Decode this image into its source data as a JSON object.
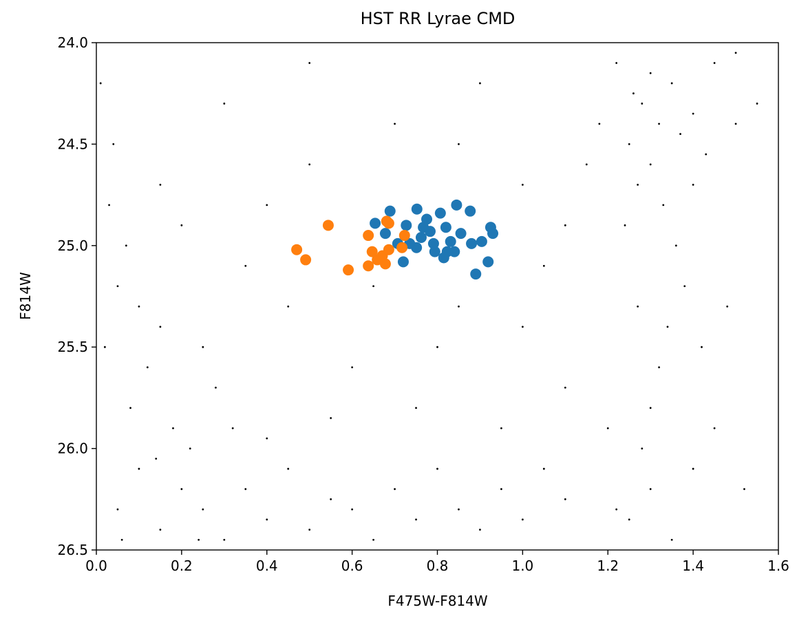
{
  "chart_data": {
    "type": "scatter",
    "title": "HST RR Lyrae CMD",
    "x_label": "F475W-F814W",
    "y_label": "F814W",
    "xlim": [
      0,
      1.6
    ],
    "ylim": [
      24,
      26.5
    ],
    "y_inverted": true,
    "xticks": [
      {
        "value": 0,
        "label": "0.0"
      },
      0.2,
      0.4,
      0.6,
      0.8,
      {
        "value": 1,
        "label": "1.0"
      },
      1.2,
      1.4,
      1.6
    ],
    "yticks": [
      {
        "value": 24,
        "label": "24.0"
      },
      24.5,
      {
        "value": 25,
        "label": "25.0"
      },
      25.5,
      {
        "value": 26,
        "label": "26.0"
      },
      26.5
    ],
    "series": [
      {
        "color": "#000000",
        "marker_size": 1.4,
        "x": [
          1.28,
          1.32,
          1.25,
          1.35,
          1.3,
          1.22,
          1.4,
          1.45,
          1.5,
          1.27,
          1.33,
          1.36,
          1.38,
          1.34,
          1.32,
          1.3,
          1.28,
          1.3,
          1.25,
          1.4,
          1.45,
          1.42,
          1.2,
          1.22,
          1.5,
          1.55,
          1.18,
          1.15,
          1.4,
          1.48,
          1.52,
          1.35,
          1.27,
          1.24,
          1.43,
          1.3,
          1.26,
          1.37,
          0.05,
          0.1,
          0.15,
          0.2,
          0.25,
          0.3,
          0.02,
          0.05,
          0.08,
          0.12,
          0.18,
          0.22,
          0.35,
          0.4,
          0.45,
          0.5,
          0.55,
          0.6,
          0.65,
          0.7,
          0.75,
          0.8,
          0.85,
          0.9,
          0.95,
          1.0,
          1.05,
          1.1,
          0.03,
          0.07,
          0.1,
          0.15,
          0.28,
          0.32,
          0.4,
          0.01,
          0.04,
          0.06,
          0.14,
          0.24,
          0.3,
          0.5,
          0.7,
          0.9,
          1.0,
          0.45,
          0.6,
          0.8,
          1.0,
          0.55,
          0.75,
          0.95,
          1.1,
          0.2,
          0.35,
          0.85,
          0.65,
          1.05,
          0.15,
          0.25,
          0.5,
          0.85,
          0.4,
          1.1
        ],
        "y": [
          24.3,
          24.4,
          24.5,
          24.2,
          24.6,
          24.1,
          24.35,
          24.1,
          24.05,
          24.7,
          24.8,
          25.0,
          25.2,
          25.4,
          25.6,
          25.8,
          26.0,
          26.2,
          26.35,
          26.1,
          25.9,
          25.5,
          25.9,
          26.3,
          24.4,
          24.3,
          24.4,
          24.6,
          24.7,
          25.3,
          26.2,
          26.45,
          25.3,
          24.9,
          24.55,
          24.15,
          24.25,
          24.45,
          26.3,
          26.1,
          26.4,
          26.2,
          26.3,
          26.45,
          25.5,
          25.2,
          25.8,
          25.6,
          25.9,
          26.0,
          26.2,
          26.35,
          26.1,
          26.4,
          26.25,
          26.3,
          26.45,
          26.2,
          26.35,
          26.1,
          26.3,
          26.4,
          26.2,
          26.35,
          26.1,
          26.25,
          24.8,
          25.0,
          25.3,
          25.4,
          25.7,
          25.9,
          25.95,
          24.2,
          24.5,
          26.45,
          26.05,
          26.45,
          24.3,
          24.6,
          24.4,
          24.2,
          24.7,
          25.3,
          25.6,
          25.5,
          25.4,
          25.85,
          25.8,
          25.9,
          25.7,
          24.9,
          25.1,
          25.3,
          25.2,
          25.1,
          24.7,
          25.5,
          24.1,
          24.5,
          24.8,
          24.9
        ]
      },
      {
        "color": "#1f77b4",
        "marker_size": 8,
        "x": [
          0.752,
          0.689,
          0.877,
          0.845,
          0.654,
          0.678,
          0.727,
          0.775,
          0.807,
          0.82,
          0.762,
          0.791,
          0.831,
          0.751,
          0.815,
          0.84,
          0.88,
          0.904,
          0.925,
          0.93,
          0.919,
          0.89,
          0.72,
          0.735,
          0.783,
          0.855,
          0.794,
          0.707,
          0.767,
          0.823
        ],
        "y": [
          24.82,
          24.83,
          24.83,
          24.8,
          24.89,
          24.94,
          24.9,
          24.87,
          24.84,
          24.91,
          24.96,
          24.99,
          24.98,
          25.01,
          25.06,
          25.03,
          24.99,
          24.98,
          24.91,
          24.94,
          25.08,
          25.14,
          25.08,
          24.99,
          24.93,
          24.94,
          25.03,
          24.99,
          24.91,
          25.03
        ]
      },
      {
        "color": "#ff7f0e",
        "marker_size": 8,
        "x": [
          0.544,
          0.47,
          0.491,
          0.591,
          0.638,
          0.686,
          0.681,
          0.647,
          0.638,
          0.671,
          0.678,
          0.686,
          0.717,
          0.723,
          0.659
        ],
        "y": [
          24.9,
          25.02,
          25.07,
          25.12,
          24.95,
          24.89,
          24.88,
          25.03,
          25.1,
          25.05,
          25.09,
          25.02,
          25.01,
          24.95,
          25.07
        ]
      }
    ]
  }
}
